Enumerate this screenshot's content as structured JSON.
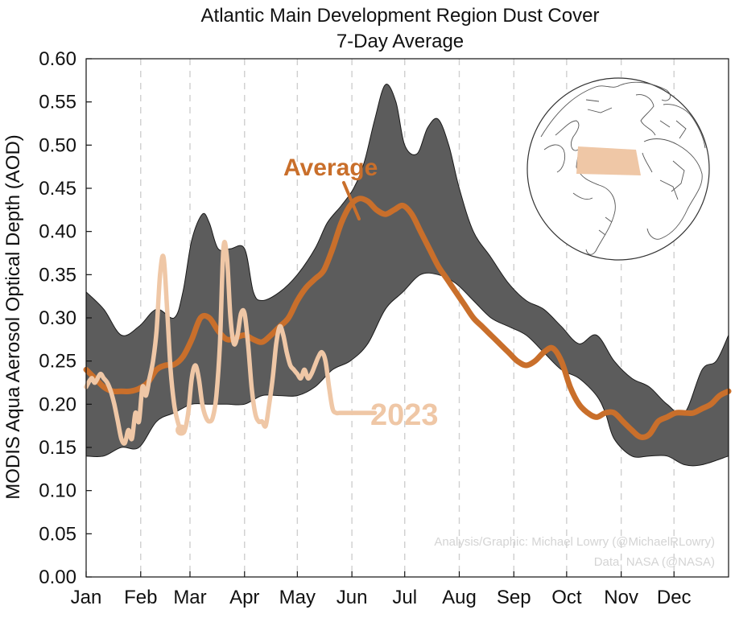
{
  "chart_data": {
    "type": "line",
    "title": "Atlantic Main Development Region Dust Cover",
    "subtitle": "7-Day Average",
    "ylabel": "MODIS Aqua Aerosol Optical Depth (AOD)",
    "xlabel": "",
    "ylim": [
      0,
      0.6
    ],
    "xlim": [
      0,
      365
    ],
    "yticks": [
      "0.00",
      "0.05",
      "0.10",
      "0.15",
      "0.20",
      "0.25",
      "0.30",
      "0.35",
      "0.40",
      "0.45",
      "0.50",
      "0.55",
      "0.60"
    ],
    "month_labels": [
      "Jan",
      "Feb",
      "Mar",
      "Apr",
      "May",
      "Jun",
      "Jul",
      "Aug",
      "Sep",
      "Oct",
      "Nov",
      "Dec"
    ],
    "month_starts": [
      0,
      31,
      59,
      90,
      120,
      151,
      181,
      212,
      243,
      273,
      304,
      334
    ],
    "grid": "vertical dashed at month starts",
    "colors": {
      "band": "#5c5c5c",
      "average": "#c96f2b",
      "year2023": "#efc7a6",
      "globe_region": "#efc7a6"
    },
    "series": [
      {
        "name": "Range upper",
        "x": [
          0,
          10,
          20,
          30,
          40,
          50,
          55,
          60,
          66,
          70,
          75,
          82,
          90,
          95,
          100,
          110,
          120,
          130,
          137,
          145,
          152,
          158,
          164,
          170,
          176,
          181,
          188,
          194,
          200,
          206,
          212,
          220,
          230,
          240,
          250,
          260,
          270,
          280,
          290,
          300,
          310,
          320,
          330,
          340,
          350,
          358,
          365
        ],
        "values": [
          0.33,
          0.31,
          0.28,
          0.29,
          0.31,
          0.3,
          0.33,
          0.39,
          0.42,
          0.41,
          0.38,
          0.38,
          0.38,
          0.33,
          0.32,
          0.33,
          0.35,
          0.38,
          0.41,
          0.43,
          0.45,
          0.48,
          0.53,
          0.57,
          0.55,
          0.5,
          0.49,
          0.52,
          0.53,
          0.5,
          0.45,
          0.4,
          0.37,
          0.34,
          0.32,
          0.31,
          0.29,
          0.27,
          0.28,
          0.25,
          0.23,
          0.22,
          0.2,
          0.19,
          0.24,
          0.25,
          0.28
        ]
      },
      {
        "name": "Range lower",
        "x": [
          0,
          10,
          20,
          30,
          40,
          50,
          60,
          70,
          80,
          90,
          100,
          110,
          120,
          130,
          140,
          150,
          160,
          170,
          180,
          190,
          200,
          210,
          220,
          230,
          240,
          250,
          260,
          270,
          280,
          290,
          295,
          300,
          310,
          320,
          330,
          340,
          350,
          365
        ],
        "values": [
          0.14,
          0.14,
          0.15,
          0.15,
          0.18,
          0.19,
          0.2,
          0.2,
          0.2,
          0.2,
          0.21,
          0.21,
          0.21,
          0.22,
          0.24,
          0.25,
          0.27,
          0.31,
          0.33,
          0.35,
          0.35,
          0.34,
          0.32,
          0.3,
          0.29,
          0.28,
          0.26,
          0.24,
          0.23,
          0.21,
          0.19,
          0.16,
          0.14,
          0.14,
          0.14,
          0.13,
          0.13,
          0.14
        ]
      },
      {
        "name": "Average",
        "label": "Average",
        "x": [
          0,
          5,
          10,
          15,
          20,
          25,
          30,
          35,
          40,
          45,
          50,
          55,
          60,
          65,
          70,
          75,
          80,
          85,
          90,
          95,
          100,
          105,
          110,
          115,
          120,
          125,
          130,
          135,
          140,
          145,
          150,
          155,
          160,
          165,
          170,
          175,
          180,
          185,
          190,
          195,
          200,
          205,
          210,
          215,
          220,
          225,
          230,
          235,
          240,
          245,
          250,
          255,
          260,
          265,
          270,
          275,
          280,
          285,
          290,
          295,
          300,
          305,
          310,
          315,
          320,
          325,
          330,
          335,
          340,
          345,
          350,
          355,
          360,
          365
        ],
        "values": [
          0.24,
          0.23,
          0.22,
          0.215,
          0.215,
          0.215,
          0.218,
          0.225,
          0.24,
          0.245,
          0.246,
          0.255,
          0.275,
          0.3,
          0.3,
          0.285,
          0.275,
          0.277,
          0.28,
          0.275,
          0.272,
          0.28,
          0.29,
          0.3,
          0.32,
          0.335,
          0.345,
          0.355,
          0.38,
          0.41,
          0.43,
          0.438,
          0.435,
          0.425,
          0.42,
          0.425,
          0.43,
          0.42,
          0.4,
          0.38,
          0.36,
          0.345,
          0.33,
          0.315,
          0.3,
          0.29,
          0.28,
          0.27,
          0.26,
          0.25,
          0.245,
          0.25,
          0.26,
          0.265,
          0.25,
          0.22,
          0.2,
          0.19,
          0.185,
          0.19,
          0.19,
          0.18,
          0.17,
          0.162,
          0.165,
          0.18,
          0.185,
          0.19,
          0.19,
          0.19,
          0.195,
          0.2,
          0.21,
          0.215
        ]
      },
      {
        "name": "2023",
        "label": "2023",
        "x": [
          0,
          3,
          5,
          8,
          10,
          12,
          14,
          16,
          18,
          20,
          22,
          24,
          26,
          28,
          30,
          32,
          34,
          36,
          38,
          40,
          42,
          44,
          46,
          48,
          50,
          52,
          54,
          56,
          58,
          60,
          62,
          64,
          66,
          68,
          70,
          72,
          74,
          76,
          78,
          80,
          82,
          84,
          86,
          88,
          90,
          92,
          94,
          96,
          98,
          100,
          102,
          104,
          106,
          108,
          110,
          112,
          114,
          116,
          118,
          120,
          122,
          124,
          126,
          128,
          130,
          132,
          134,
          136,
          138,
          140,
          142,
          144,
          146,
          148,
          150,
          152,
          154,
          156,
          158,
          160,
          162,
          164
        ],
        "values": [
          0.22,
          0.23,
          0.225,
          0.235,
          0.23,
          0.225,
          0.215,
          0.2,
          0.18,
          0.16,
          0.155,
          0.17,
          0.16,
          0.19,
          0.18,
          0.22,
          0.21,
          0.23,
          0.25,
          0.285,
          0.35,
          0.37,
          0.31,
          0.24,
          0.2,
          0.18,
          0.17,
          0.17,
          0.19,
          0.23,
          0.245,
          0.23,
          0.2,
          0.185,
          0.18,
          0.185,
          0.21,
          0.27,
          0.38,
          0.37,
          0.3,
          0.27,
          0.28,
          0.305,
          0.305,
          0.27,
          0.22,
          0.19,
          0.18,
          0.18,
          0.175,
          0.2,
          0.23,
          0.27,
          0.29,
          0.28,
          0.26,
          0.245,
          0.24,
          0.235,
          0.23,
          0.24,
          0.23,
          0.235,
          0.245,
          0.255,
          0.26,
          0.25,
          0.22,
          0.195,
          0.19,
          0.19,
          0.19,
          0.19,
          0.19,
          0.19,
          0.19,
          0.19,
          0.19,
          0.19,
          0.19,
          0.19
        ]
      }
    ],
    "annotations": {
      "average_label": "Average",
      "year_label": "2023",
      "credit_line1": "Analysis/Graphic: Michael Lowry (@MichaelRLowry)",
      "credit_line2": "Data: NASA (@NASA)"
    },
    "inset": "globe with Atlantic MDR region highlighted"
  }
}
